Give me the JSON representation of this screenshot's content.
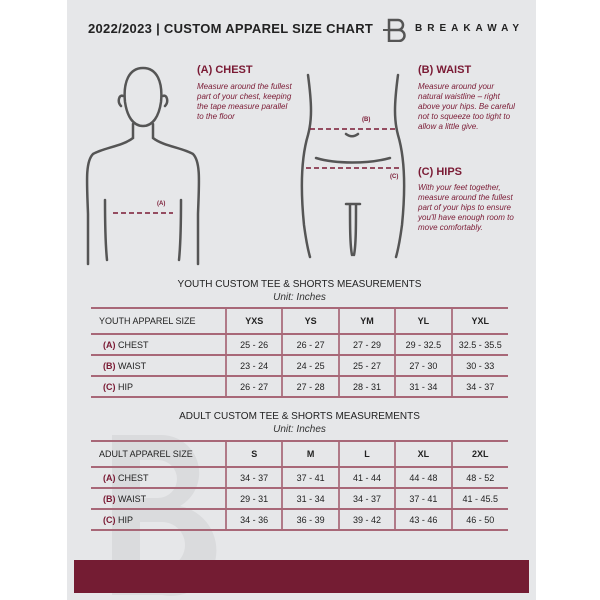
{
  "header": {
    "title": "2022/2023  |  CUSTOM APPAREL SIZE CHART",
    "brand": "BREAKAWAY",
    "logo_letter": "B"
  },
  "guide": {
    "chest": {
      "title": "(A) CHEST",
      "text": "Measure around the fullest part of your chest, keeping the tape measure parallel to the floor",
      "marker": "(A)"
    },
    "waist": {
      "title": "(B) WAIST",
      "text": "Measure around your natural waistline – right above your hips. Be careful not to squeeze too tight to allow a little give.",
      "marker": "(B)"
    },
    "hips": {
      "title": "(C) HIPS",
      "text": "With your feet together, measure around the fullest part of your hips to ensure you'll have enough room to move comfortably.",
      "marker": "(C)"
    }
  },
  "colors": {
    "accent": "#741c33",
    "background": "#e6e7e9"
  },
  "youth": {
    "title": "YOUTH CUSTOM TEE & SHORTS MEASUREMENTS",
    "unit": "Unit: Inches",
    "header": [
      "YOUTH APPAREL SIZE",
      "YXS",
      "YS",
      "YM",
      "YL",
      "YXL"
    ],
    "rows": [
      {
        "key": "(A)",
        "label": "CHEST",
        "values": [
          "25 - 26",
          "26 - 27",
          "27 - 29",
          "29 - 32.5",
          "32.5 - 35.5"
        ]
      },
      {
        "key": "(B)",
        "label": "WAIST",
        "values": [
          "23 - 24",
          "24 - 25",
          "25 - 27",
          "27 - 30",
          "30 - 33"
        ]
      },
      {
        "key": "(C)",
        "label": "HIP",
        "values": [
          "26 - 27",
          "27 - 28",
          "28 - 31",
          "31 - 34",
          "34 - 37"
        ]
      }
    ]
  },
  "adult": {
    "title": "ADULT CUSTOM TEE & SHORTS MEASUREMENTS",
    "unit": "Unit: Inches",
    "header": [
      "ADULT APPAREL SIZE",
      "S",
      "M",
      "L",
      "XL",
      "2XL"
    ],
    "rows": [
      {
        "key": "(A)",
        "label": "CHEST",
        "values": [
          "34 - 37",
          "37 - 41",
          "41 - 44",
          "44 - 48",
          "48 - 52"
        ]
      },
      {
        "key": "(B)",
        "label": "WAIST",
        "values": [
          "29 - 31",
          "31 - 34",
          "34 - 37",
          "37 - 41",
          "41 - 45.5"
        ]
      },
      {
        "key": "(C)",
        "label": "HIP",
        "values": [
          "34 - 36",
          "36 - 39",
          "39 - 42",
          "43 - 46",
          "46 - 50"
        ]
      }
    ]
  }
}
